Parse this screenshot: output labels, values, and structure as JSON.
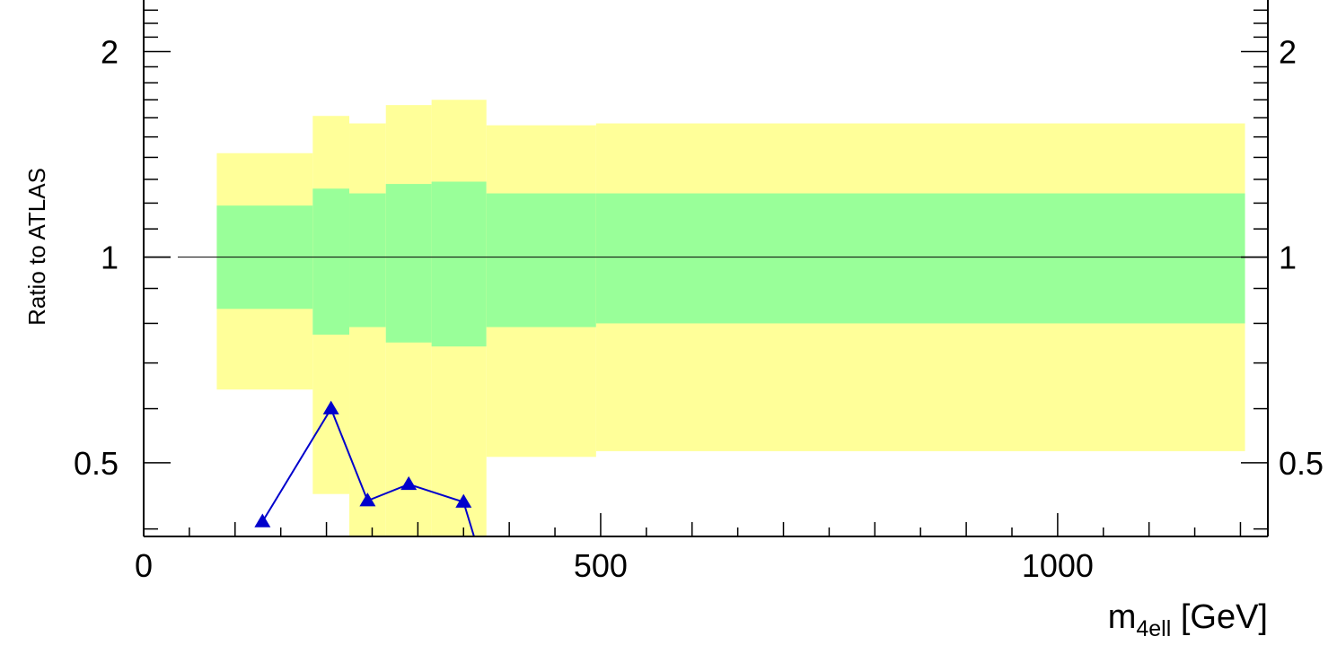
{
  "chart_data": {
    "type": "step-band-ratio",
    "ylabel": "Ratio to ATLAS",
    "xlabel_main": "m",
    "xlabel_sub": "4ell",
    "xlabel_unit": " [GeV]",
    "xlim": [
      0,
      1230
    ],
    "ylog": true,
    "ylim": [
      0.39,
      2.38
    ],
    "xticks": [
      {
        "value": 0,
        "label": "0"
      },
      {
        "value": 500,
        "label": "500"
      },
      {
        "value": 1000,
        "label": "1000"
      }
    ],
    "yticks": [
      {
        "value": 0.5,
        "label": "0.5"
      },
      {
        "value": 1,
        "label": "1"
      },
      {
        "value": 2,
        "label": "2"
      }
    ],
    "reference_line": 1,
    "bands": {
      "edges": [
        80,
        185,
        225,
        265,
        315,
        375,
        495,
        1205
      ],
      "outer_color": "#ffff99",
      "inner_color": "#99ff99",
      "outer_lo": [
        0.64,
        0.45,
        0.36,
        0.37,
        0.36,
        0.51,
        0.52
      ],
      "outer_hi": [
        1.42,
        1.61,
        1.57,
        1.67,
        1.7,
        1.56,
        1.57
      ],
      "inner_lo": [
        0.84,
        0.77,
        0.79,
        0.75,
        0.74,
        0.79,
        0.8
      ],
      "inner_hi": [
        1.19,
        1.26,
        1.24,
        1.28,
        1.29,
        1.24,
        1.24
      ]
    },
    "series": [
      {
        "color": "#0000cc",
        "marker": "triangle",
        "x": [
          130,
          205,
          245,
          290,
          350,
          375
        ],
        "y": [
          0.41,
          0.6,
          0.44,
          0.465,
          0.438,
          0.34
        ]
      }
    ]
  }
}
